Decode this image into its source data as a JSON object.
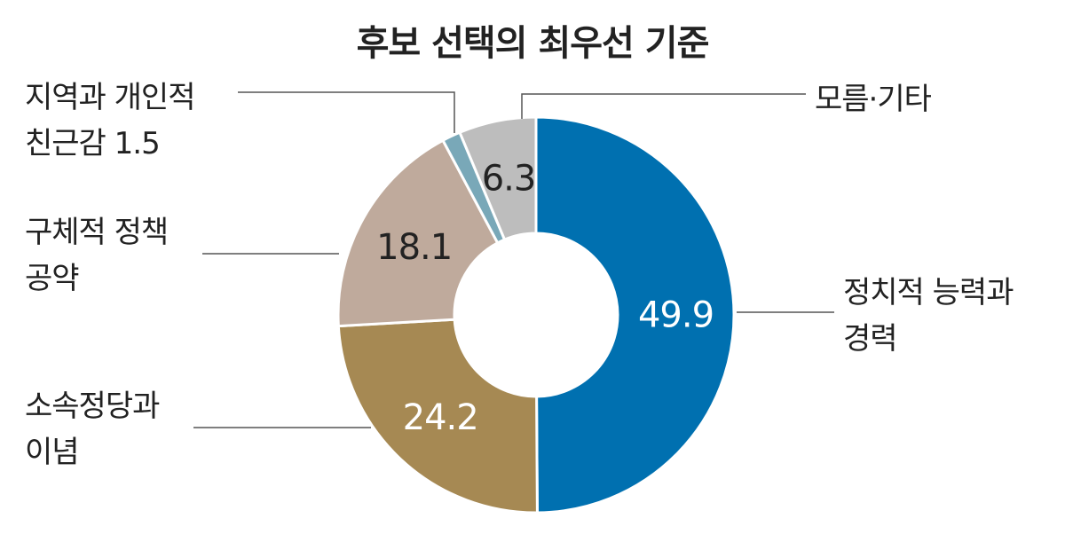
{
  "chart_data": {
    "type": "pie",
    "title": "후보 선택의 최우선 기준",
    "slices": [
      {
        "line1": "정치적 능력과",
        "line2": "경력",
        "value": 49.9,
        "value_label": "49.9",
        "color": "#0070b0",
        "value_color": "#ffffff"
      },
      {
        "line1": "소속정당과",
        "line2": "이념",
        "value": 24.2,
        "value_label": "24.2",
        "color": "#a68953",
        "value_color": "#ffffff"
      },
      {
        "line1": "구체적 정책",
        "line2": "공약",
        "value": 18.1,
        "value_label": "18.1",
        "color": "#bfaa9c",
        "value_color": "#222222"
      },
      {
        "line1": "지역과 개인적",
        "line2": "친근감 1.5",
        "value": 1.5,
        "value_label": "",
        "color": "#79a8b8",
        "value_color": "#222222"
      },
      {
        "line1": "모름·기타",
        "line2": "",
        "value": 6.3,
        "value_label": "6.3",
        "color": "#bdbdbd",
        "value_color": "#222222"
      }
    ]
  }
}
